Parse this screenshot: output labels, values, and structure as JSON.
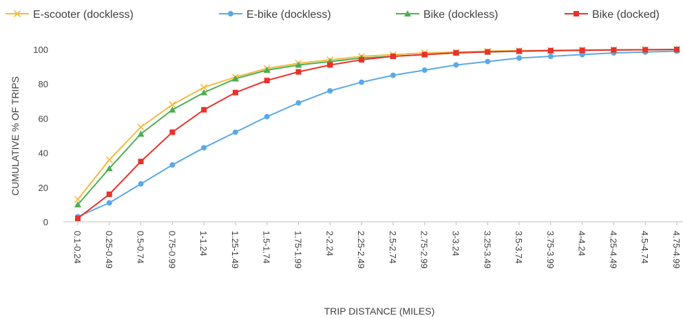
{
  "chart_data": {
    "type": "line",
    "title": "",
    "xlabel": "TRIP DISTANCE (MILES)",
    "ylabel": "CUMULATIVE % OF TRIPS",
    "ylim": [
      0,
      100
    ],
    "yticks": [
      0,
      20,
      40,
      60,
      80,
      100
    ],
    "grid": false,
    "legend_position": "top",
    "categories": [
      "0.1-0.24",
      "0.25-0.49",
      "0.5-0.74",
      "0.75-0.99",
      "1-1.24",
      "1.25-1.49",
      "1.5-1.74",
      "1.75-1.99",
      "2-2.24",
      "2.25-2.49",
      "2.5-2.74",
      "2.75-2.99",
      "3-3.24",
      "3.25-3.49",
      "3.5-3.74",
      "3.75-3.99",
      "4-4.24",
      "4.25-4.49",
      "4.5-4.74",
      "4.75-4.99"
    ],
    "series": [
      {
        "name": "E-scooter (dockless)",
        "color": "#F5B942",
        "marker": "x-mark",
        "values": [
          13,
          36,
          55,
          68,
          78,
          84,
          89,
          92,
          94,
          96,
          97,
          98,
          98.5,
          99,
          99.3,
          99.5,
          99.7,
          99.8,
          99.9,
          100
        ]
      },
      {
        "name": "E-bike (dockless)",
        "color": "#5AA9E6",
        "marker": "circle",
        "values": [
          3,
          11,
          22,
          33,
          43,
          52,
          61,
          69,
          76,
          81,
          85,
          88,
          91,
          93,
          95,
          96,
          97,
          98,
          98.5,
          99
        ]
      },
      {
        "name": "Bike (dockless)",
        "color": "#4CAF50",
        "marker": "triangle",
        "values": [
          10,
          31,
          51,
          65,
          75,
          83,
          88,
          91,
          93,
          95,
          96,
          97,
          98,
          98.5,
          99,
          99.3,
          99.5,
          99.7,
          99.8,
          100
        ]
      },
      {
        "name": "Bike (docked)",
        "color": "#E8322B",
        "marker": "square",
        "values": [
          2,
          16,
          35,
          52,
          65,
          75,
          82,
          87,
          91,
          94,
          96,
          97,
          98,
          98.6,
          99,
          99.3,
          99.5,
          99.7,
          99.8,
          100
        ]
      }
    ]
  }
}
